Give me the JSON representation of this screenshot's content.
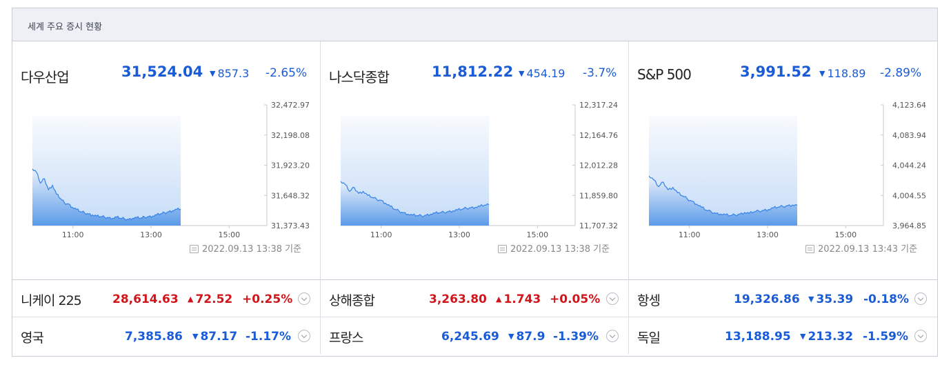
{
  "header": {
    "title": "세계 주요 증시 현황"
  },
  "panels": [
    {
      "name": "다우산업",
      "value": "31,524.04",
      "change": "857.3",
      "pct": "-2.65%",
      "direction": "down",
      "timestamp": "2022.09.13 13:38 기준",
      "chart_data": {
        "type": "area",
        "x_ticks": [
          "11:00",
          "13:00",
          "15:00"
        ],
        "y_ticks": [
          "32,472.97",
          "32,198.08",
          "31,923.20",
          "31,648.32",
          "31,373.43"
        ],
        "ylim": [
          31373.43,
          32472.97
        ],
        "series": [
          31890,
          31860,
          31760,
          31800,
          31700,
          31740,
          31660,
          31620,
          31580,
          31570,
          31540,
          31520,
          31500,
          31490,
          31480,
          31470,
          31460,
          31455,
          31450,
          31445,
          31440,
          31450,
          31440,
          31435,
          31430,
          31440,
          31445,
          31440,
          31450,
          31455,
          31460,
          31470,
          31480,
          31490,
          31500,
          31510,
          31520,
          31524
        ]
      }
    },
    {
      "name": "나스닥종합",
      "value": "11,812.22",
      "change": "454.19",
      "pct": "-3.7%",
      "direction": "down",
      "timestamp": "2022.09.13 13:38 기준",
      "chart_data": {
        "type": "area",
        "x_ticks": [
          "11:00",
          "13:00",
          "15:00"
        ],
        "y_ticks": [
          "12,317.24",
          "12,164.76",
          "12,012.28",
          "11,859.80",
          "11,707.32"
        ],
        "ylim": [
          11707.32,
          12317.24
        ],
        "series": [
          11930,
          11915,
          11880,
          11900,
          11870,
          11880,
          11860,
          11850,
          11840,
          11835,
          11820,
          11805,
          11790,
          11780,
          11772,
          11765,
          11760,
          11758,
          11756,
          11760,
          11765,
          11770,
          11772,
          11775,
          11778,
          11782,
          11786,
          11790,
          11795,
          11798,
          11800,
          11805,
          11810,
          11812
        ]
      }
    },
    {
      "name": "S&P 500",
      "value": "3,991.52",
      "change": "118.89",
      "pct": "-2.89%",
      "direction": "down",
      "timestamp": "2022.09.13 13:43 기준",
      "chart_data": {
        "type": "area",
        "x_ticks": [
          "11:00",
          "13:00",
          "15:00"
        ],
        "y_ticks": [
          "4,123.64",
          "4,083.94",
          "4,044.24",
          "4,004.55",
          "3,964.85"
        ],
        "ylim": [
          3964.85,
          4123.64
        ],
        "series": [
          4030,
          4025,
          4016,
          4022,
          4012,
          4015,
          4008,
          4004,
          4000,
          3997,
          3993,
          3989,
          3985,
          3983,
          3981,
          3980,
          3979,
          3978,
          3979,
          3980,
          3982,
          3981,
          3983,
          3984,
          3985,
          3986,
          3988,
          3989,
          3990,
          3991,
          3992,
          3991.5
        ]
      }
    }
  ],
  "rows": [
    {
      "name": "니케이 225",
      "value": "28,614.63",
      "change": "72.52",
      "pct": "+0.25%",
      "direction": "up"
    },
    {
      "name": "상해종합",
      "value": "3,263.80",
      "change": "1.743",
      "pct": "+0.05%",
      "direction": "up"
    },
    {
      "name": "항셍",
      "value": "19,326.86",
      "change": "35.39",
      "pct": "-0.18%",
      "direction": "down"
    },
    {
      "name": "영국",
      "value": "7,385.86",
      "change": "87.17",
      "pct": "-1.17%",
      "direction": "down"
    },
    {
      "name": "프랑스",
      "value": "6,245.69",
      "change": "87.9",
      "pct": "-1.39%",
      "direction": "down"
    },
    {
      "name": "독일",
      "value": "13,188.95",
      "change": "213.32",
      "pct": "-1.59%",
      "direction": "down"
    }
  ],
  "colors": {
    "up": "#d0151b",
    "down": "#1a5bd6",
    "chart_line": "#3d86e8"
  }
}
